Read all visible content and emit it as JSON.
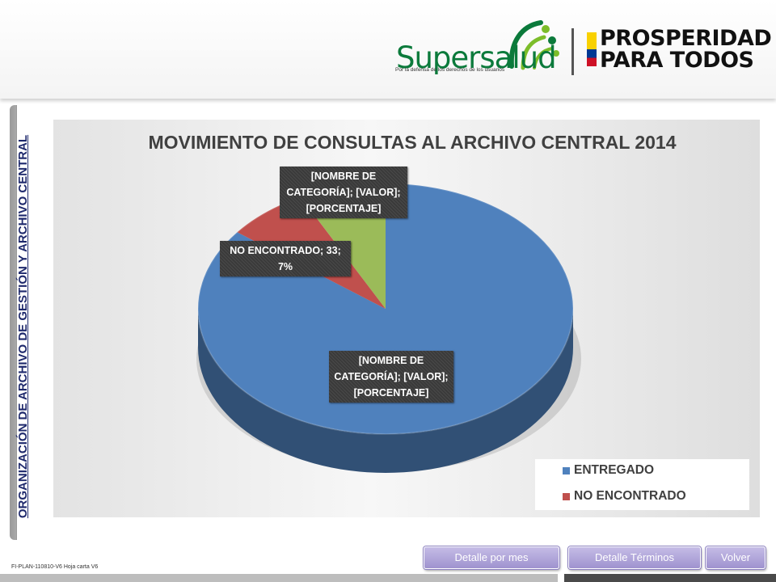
{
  "header": {
    "logo_name": "Supersalud",
    "logo_tagline": "Por la defensa de los derechos de los usuarios",
    "slogan_line1": "PROSPERIDAD",
    "slogan_line2": "PARA TODOS"
  },
  "side_tab_label": "ORGANIZACIÓN DE ARCHIVO DE GESTIÓN Y ARCHIVO CENTRAL",
  "chart_data": {
    "type": "pie",
    "title": "MOVIMIENTO DE CONSULTAS AL ARCHIVO CENTRAL 2014",
    "slices": [
      {
        "name": "ENTREGADO",
        "value": 400,
        "label": "[NOMBRE DE CATEGORÍA]; [VALOR]; [PORCENTAJE]",
        "color": "#4f81bd"
      },
      {
        "name": "NO ENCONTRADO",
        "value": 33,
        "label": "NO ENCONTRADO; 33; 7%",
        "color": "#c0504d"
      },
      {
        "name": "",
        "value": 35,
        "label": "[NOMBRE DE CATEGORÍA]; [VALOR]; [PORCENTAJE]",
        "color": "#9bbb59"
      }
    ],
    "legend": [
      "ENTREGADO",
      "NO ENCONTRADO"
    ],
    "legend_position": "bottom-right",
    "style": "3d"
  },
  "footer": {
    "code": "FI-PLAN-110810-V6 Hoja carta V6",
    "buttons": [
      "Detalle por mes",
      "Detalle  Términos",
      "Volver"
    ]
  }
}
